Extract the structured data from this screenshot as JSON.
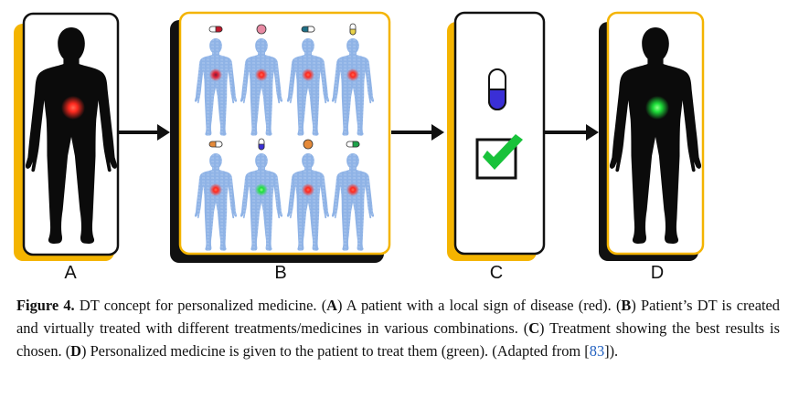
{
  "panels": {
    "a_label": "A",
    "b_label": "B",
    "c_label": "C",
    "d_label": "D"
  },
  "colors": {
    "frame_accent": "#f4b400",
    "shadow": "#111111",
    "silhouette": "#0b0b0b",
    "virtual_body": "#8fb3e6",
    "disease_spot": "#ff2a1f",
    "healthy_spot": "#1ee03a",
    "chosen_capsule": "#3a2fd6",
    "check_mark": "#18c23a"
  },
  "panel_b": {
    "capsules": [
      {
        "top": "#ffffff",
        "bottom": "#c0192c",
        "spot": "disease"
      },
      {
        "top": "#e78aa3",
        "bottom": "#e78aa3",
        "spot": "disease"
      },
      {
        "top": "#1e6f86",
        "bottom": "#ffffff",
        "spot": "disease"
      },
      {
        "top": "#ffffff",
        "bottom": "#e9d34a",
        "spot": "disease"
      },
      {
        "top": "#e58a3a",
        "bottom": "#ffffff",
        "spot": "disease"
      },
      {
        "top": "#ffffff",
        "bottom": "#3a2fd6",
        "spot": "healthy"
      },
      {
        "top": "#e58a3a",
        "bottom": "#e58a3a",
        "spot": "disease"
      },
      {
        "top": "#ffffff",
        "bottom": "#1ea34a",
        "spot": "disease"
      }
    ]
  },
  "caption": {
    "figure_label": "Figure 4.",
    "intro": " DT concept for personalized medicine. (",
    "a": "A",
    "a_text": ") A patient with a local sign of disease (red). (",
    "b": "B",
    "b_text": ") Patient’s DT is created and virtually treated with different treatments/medicines in various combinations. (",
    "c": "C",
    "c_text": ") Treatment showing the best results is chosen. (",
    "d": "D",
    "d_text": ") Personalized medicine is given to the patient to treat them (green). (Adapted from [",
    "ref": "83",
    "end": "])."
  }
}
